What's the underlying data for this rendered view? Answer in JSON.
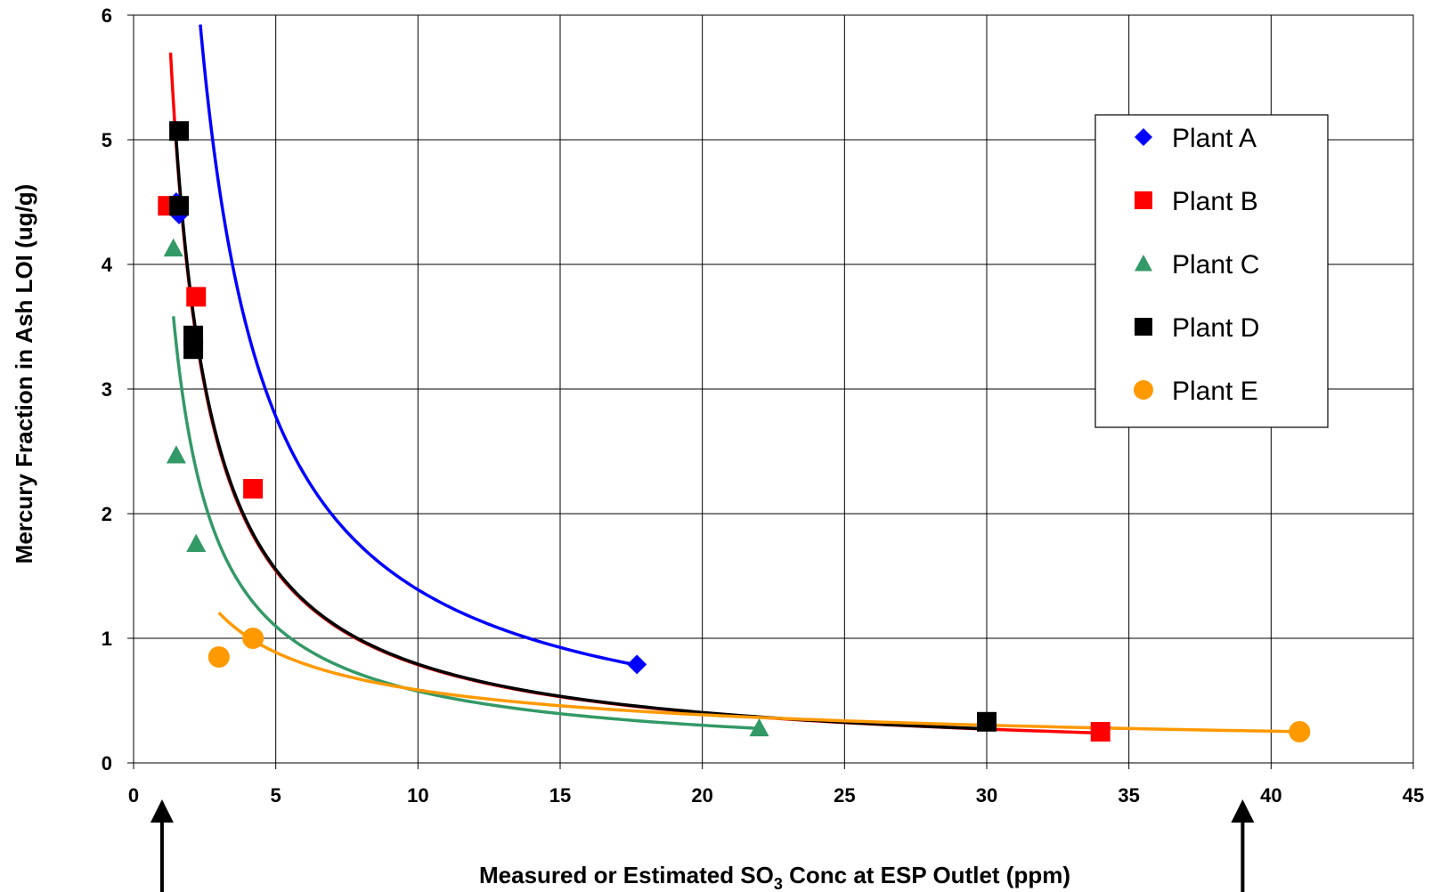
{
  "chart_data": {
    "type": "scatter",
    "title": "",
    "xlabel_prefix": "Measured or Estimated SO",
    "xlabel_sub": "3",
    "xlabel_suffix": " Conc at ESP Outlet (ppm)",
    "ylabel": "Mercury Fraction in Ash LOI (ug/g)",
    "xlim": [
      0,
      45
    ],
    "ylim": [
      0,
      6
    ],
    "xticks": [
      0,
      5,
      10,
      15,
      20,
      25,
      30,
      35,
      40,
      45
    ],
    "yticks": [
      0,
      1,
      2,
      3,
      4,
      5,
      6
    ],
    "grid": true,
    "legend_position": "top-right",
    "series": [
      {
        "name": "Plant A",
        "color": "#0000ff",
        "marker": "diamond",
        "points": [
          [
            1.5,
            4.5
          ],
          [
            1.6,
            4.4
          ],
          [
            2.1,
            3.4
          ],
          [
            17.7,
            0.79
          ]
        ],
        "trend_a": 13.9,
        "trend_b": -1.0,
        "trend_range": [
          1.5,
          17.7
        ]
      },
      {
        "name": "Plant B",
        "color": "#ff0000",
        "marker": "square",
        "points": [
          [
            1.2,
            4.47
          ],
          [
            2.2,
            3.74
          ],
          [
            4.2,
            2.2
          ],
          [
            34.0,
            0.25
          ]
        ],
        "trend_a": 7.35,
        "trend_b": -0.97,
        "trend_range": [
          1.3,
          34.0
        ]
      },
      {
        "name": "Plant C",
        "color": "#339966",
        "marker": "triangle",
        "points": [
          [
            1.4,
            4.13
          ],
          [
            1.5,
            2.47
          ],
          [
            2.2,
            1.76
          ],
          [
            22.0,
            0.28
          ]
        ],
        "trend_a": 4.9,
        "trend_b": -0.93,
        "trend_range": [
          1.4,
          22.0
        ]
      },
      {
        "name": "Plant D",
        "color": "#000000",
        "marker": "square",
        "points": [
          [
            1.6,
            5.07
          ],
          [
            1.6,
            4.47
          ],
          [
            2.1,
            3.43
          ],
          [
            2.1,
            3.32
          ],
          [
            30.0,
            0.33
          ]
        ],
        "trend_a": 7.4,
        "trend_b": -0.97,
        "trend_range": [
          1.5,
          30.0
        ]
      },
      {
        "name": "Plant E",
        "color": "#ff9900",
        "marker": "circle",
        "points": [
          [
            3.0,
            0.85
          ],
          [
            4.2,
            1.0
          ],
          [
            41.0,
            0.25
          ]
        ],
        "trend_a": 2.33,
        "trend_b": -0.6,
        "trend_range": [
          3.0,
          41.0
        ]
      }
    ],
    "arrows": [
      {
        "x": 1.0,
        "label": ""
      },
      {
        "x": 39.0,
        "label": ""
      }
    ]
  }
}
